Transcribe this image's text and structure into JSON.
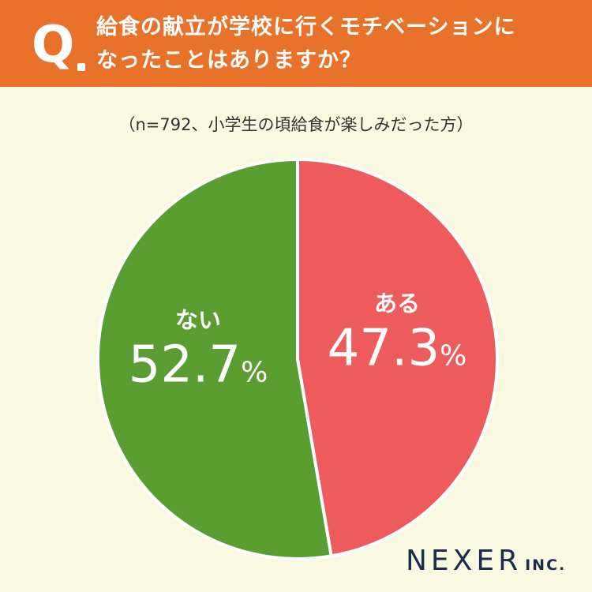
{
  "header": {
    "q_label": "Q",
    "question_line1": "給食の献立が学校に行くモチベーションに",
    "question_line2": "なったことはありますか？",
    "background_color": "#e8722a"
  },
  "subtitle": "（n=792、小学生の頃給食が楽しみだった方）",
  "chart_data": {
    "type": "pie",
    "title": "給食の献立が学校に行くモチベーションになったことはありますか？",
    "subtitle": "（n=792、小学生の頃給食が楽しみだった方）",
    "slices": [
      {
        "label": "ある",
        "value": 47.3,
        "display": "47.3",
        "unit": "%",
        "color": "#ee5b5c"
      },
      {
        "label": "ない",
        "value": 52.7,
        "display": "52.7",
        "unit": "%",
        "color": "#5a9e32"
      }
    ]
  },
  "logo": {
    "main": "NEXER",
    "sub": "INC."
  }
}
